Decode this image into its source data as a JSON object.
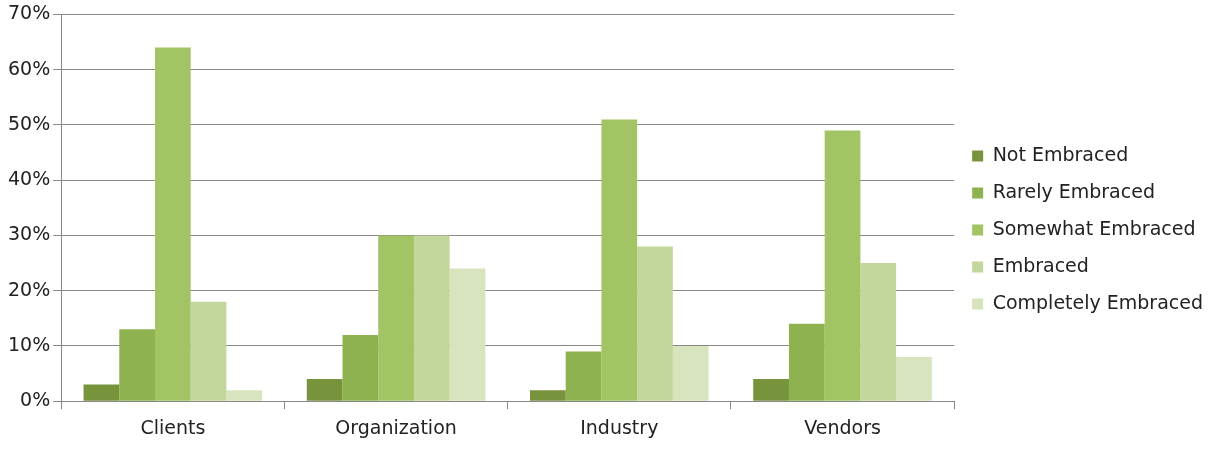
{
  "chart_data": {
    "type": "bar",
    "categories": [
      "Clients",
      "Organization",
      "Industry",
      "Vendors"
    ],
    "series": [
      {
        "name": "Not Embraced",
        "color": "#77933c",
        "values": [
          3,
          4,
          2,
          4
        ]
      },
      {
        "name": "Rarely Embraced",
        "color": "#8db24f",
        "values": [
          13,
          12,
          9,
          14
        ]
      },
      {
        "name": "Somewhat Embraced",
        "color": "#a2c465",
        "values": [
          64,
          30,
          51,
          49
        ]
      },
      {
        "name": "Embraced",
        "color": "#c3d69b",
        "values": [
          18,
          30,
          28,
          25
        ]
      },
      {
        "name": "Completely Embraced",
        "color": "#d7e4bd",
        "values": [
          2,
          24,
          10,
          8
        ]
      }
    ],
    "ylim": [
      0,
      70
    ],
    "yticks": [
      {
        "value": 0,
        "label": "0%"
      },
      {
        "value": 10,
        "label": "10%"
      },
      {
        "value": 20,
        "label": "20%"
      },
      {
        "value": 30,
        "label": "30%"
      },
      {
        "value": 40,
        "label": "40%"
      },
      {
        "value": 50,
        "label": "50%"
      },
      {
        "value": 60,
        "label": "60%"
      },
      {
        "value": 70,
        "label": "70%"
      }
    ],
    "grid": "y",
    "legend": "right"
  }
}
